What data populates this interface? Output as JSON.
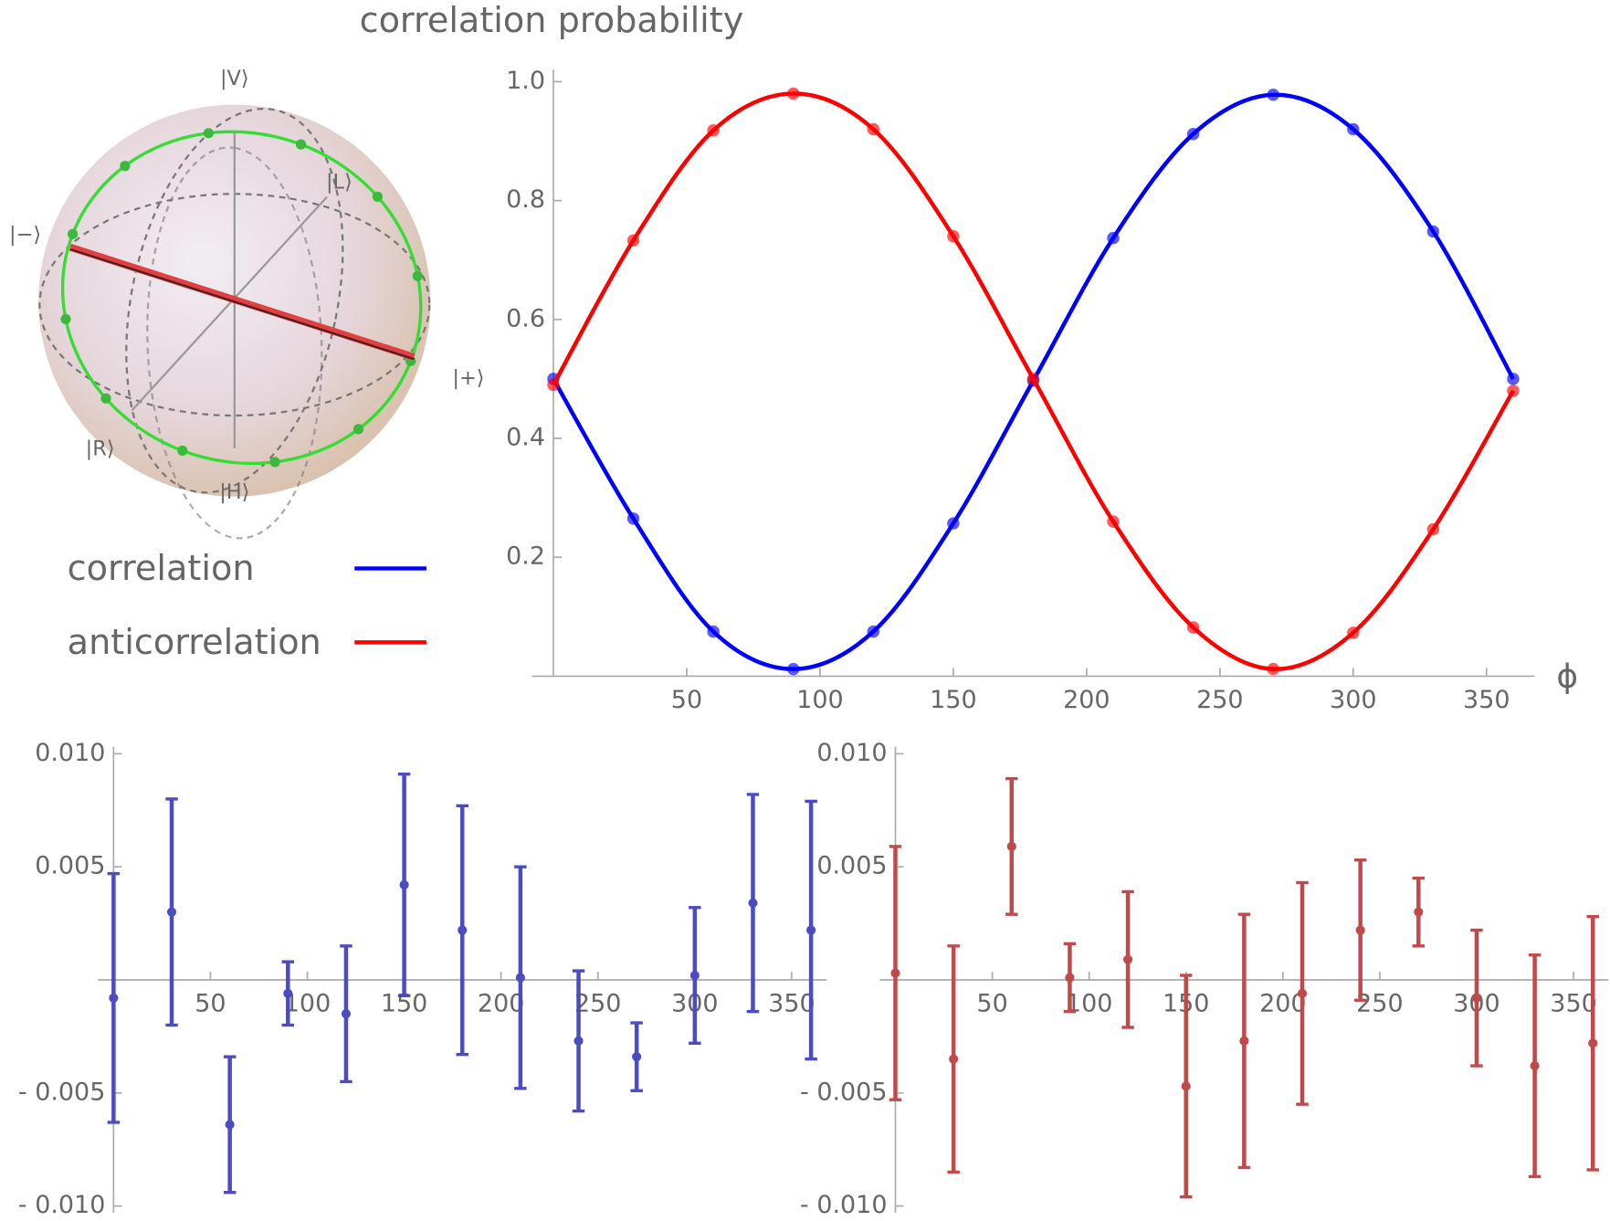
{
  "chart_data": [
    {
      "type": "line",
      "title": "correlation probability",
      "x_label": "ϕ",
      "x": [
        0,
        30,
        60,
        90,
        120,
        150,
        180,
        210,
        240,
        270,
        300,
        330,
        360
      ],
      "series": [
        {
          "name": "correlation",
          "color": "#0000ff",
          "values": [
            0.5,
            0.265,
            0.075,
            0.012,
            0.075,
            0.257,
            0.497,
            0.737,
            0.912,
            0.978,
            0.92,
            0.748,
            0.5
          ]
        },
        {
          "name": "anticorrelation",
          "color": "#ff0000",
          "values": [
            0.49,
            0.733,
            0.918,
            0.98,
            0.92,
            0.74,
            0.5,
            0.26,
            0.082,
            0.012,
            0.073,
            0.247,
            0.48
          ]
        }
      ],
      "xlim": [
        -8,
        368
      ],
      "ylim": [
        0,
        1.02
      ],
      "xticks": [
        50,
        100,
        150,
        200,
        250,
        300,
        350
      ],
      "yticks": [
        0.2,
        0.4,
        0.6,
        0.8,
        {
          "value": 1,
          "label": "1.0"
        }
      ],
      "legend": "left"
    },
    {
      "type": "errorbar",
      "color": "#4b4bc3",
      "x": [
        0,
        30,
        60,
        90,
        120,
        150,
        180,
        210,
        240,
        270,
        300,
        330,
        360
      ],
      "values": [
        -0.0008,
        0.003,
        -0.0064,
        -0.0006,
        -0.0015,
        0.0042,
        0.0022,
        0.0001,
        -0.0027,
        -0.0034,
        0.0002,
        0.0034,
        0.0022
      ],
      "errors": [
        0.0055,
        0.005,
        0.003,
        0.0014,
        0.003,
        0.0049,
        0.0055,
        0.0049,
        0.0031,
        0.0015,
        0.003,
        0.0048,
        0.0057
      ],
      "xlim": [
        -8,
        368
      ],
      "ylim": [
        -0.0103,
        0.0103
      ],
      "xticks": [
        50,
        100,
        150,
        200,
        250,
        300,
        350
      ],
      "yticks": [
        {
          "value": 0.01,
          "label": "0.010"
        },
        {
          "value": 0.005,
          "label": "0.005"
        },
        {
          "value": -0.005,
          "label": "- 0.005"
        },
        {
          "value": -0.01,
          "label": "- 0.010"
        }
      ]
    },
    {
      "type": "errorbar",
      "color": "#c04a4a",
      "x": [
        0,
        30,
        60,
        90,
        120,
        150,
        180,
        210,
        240,
        270,
        300,
        330,
        360
      ],
      "values": [
        0.0003,
        -0.0035,
        0.0059,
        0.0001,
        0.0009,
        -0.0047,
        -0.0027,
        -0.0006,
        0.0022,
        0.003,
        -0.0008,
        -0.0038,
        -0.0028
      ],
      "errors": [
        0.0056,
        0.005,
        0.003,
        0.0015,
        0.003,
        0.0049,
        0.0056,
        0.0049,
        0.0031,
        0.0015,
        0.003,
        0.0049,
        0.0056
      ],
      "xlim": [
        -8,
        368
      ],
      "ylim": [
        -0.0103,
        0.0103
      ],
      "xticks": [
        50,
        100,
        150,
        200,
        250,
        300,
        350
      ],
      "yticks": [
        {
          "value": 0.01,
          "label": "0.010"
        },
        {
          "value": 0.005,
          "label": "0.005"
        },
        {
          "value": -0.005,
          "label": "- 0.005"
        },
        {
          "value": -0.01,
          "label": "- 0.010"
        }
      ]
    }
  ],
  "bloch_sphere": {
    "labels": [
      "|V⟩",
      "|L⟩",
      "|−⟩",
      "|+⟩",
      "|R⟩",
      "|H⟩"
    ]
  }
}
